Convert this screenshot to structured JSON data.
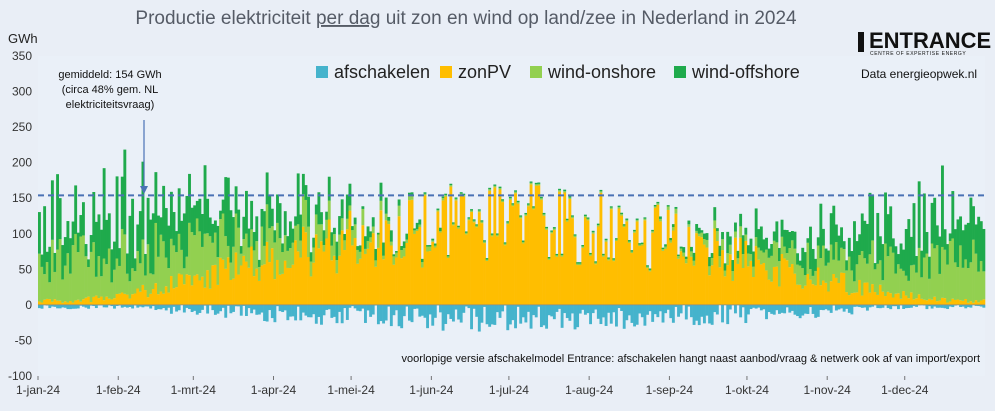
{
  "chart_data": {
    "type": "bar",
    "stacked": true,
    "title_parts": [
      "Productie elektriciteit ",
      "per dag",
      " uit zon en wind op land/zee in Nederland in 2024"
    ],
    "ylabel": "GWh",
    "ylim": [
      -100,
      350
    ],
    "yticks": [
      -100,
      -50,
      0,
      50,
      100,
      150,
      200,
      250,
      300,
      350
    ],
    "xlim": [
      0,
      366
    ],
    "xticks": [
      {
        "day": 0,
        "label": "1-jan-24"
      },
      {
        "day": 31,
        "label": "1-feb-24"
      },
      {
        "day": 60,
        "label": "1-mrt-24"
      },
      {
        "day": 91,
        "label": "1-apr-24"
      },
      {
        "day": 121,
        "label": "1-mei-24"
      },
      {
        "day": 152,
        "label": "1-jun-24"
      },
      {
        "day": 182,
        "label": "1-jul-24"
      },
      {
        "day": 213,
        "label": "1-aug-24"
      },
      {
        "day": 244,
        "label": "1-sep-24"
      },
      {
        "day": 274,
        "label": "1-okt-24"
      },
      {
        "day": 305,
        "label": "1-nov-24"
      },
      {
        "day": 335,
        "label": "1-dec-24"
      }
    ],
    "series": [
      {
        "name": "afschakelen",
        "color": "#45b3cc"
      },
      {
        "name": "zonPV",
        "color": "#ffbe00"
      },
      {
        "name": "wind-onshore",
        "color": "#92d050"
      },
      {
        "name": "wind-offshore",
        "color": "#1faa4c"
      }
    ],
    "average_line": {
      "value": 154,
      "color": "#4a72b5"
    },
    "legend_position": "top-center",
    "grid": false
  },
  "annotation": {
    "lines": [
      "gemiddeld: 154 GWh",
      "(circa 48% gem. NL",
      "elektriciteitsvraag)"
    ]
  },
  "source_text": "Data energieopwek.nl",
  "footnote": "voorlopige versie afschakelmodel Entrance: afschakelen hangt naast aanbod/vraag & netwerk ook af van import/export",
  "logo": {
    "name": "ENTRANCE",
    "tagline": "CENTRE OF EXPERTISE ENERGY"
  }
}
